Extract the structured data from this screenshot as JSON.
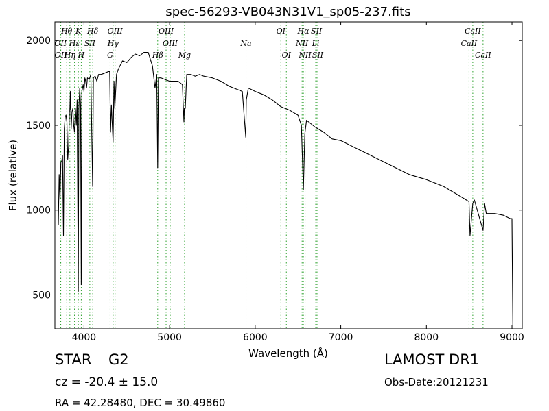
{
  "chart_data": {
    "type": "line",
    "title": "spec-56293-VB043N31V1_sp05-237.fits",
    "xlabel": "Wavelength (Å)",
    "ylabel": "Flux (relative)",
    "xlim": [
      3660,
      9120
    ],
    "ylim": [
      300,
      2110
    ],
    "x_ticks": [
      4000,
      5000,
      6000,
      7000,
      8000,
      9000
    ],
    "y_ticks": [
      500,
      1000,
      1500,
      2000
    ],
    "line_color": "#000000",
    "marker_line_color": "#2ca02c",
    "series": [
      {
        "x": [
          3700,
          3710,
          3720,
          3730,
          3740,
          3750,
          3760,
          3770,
          3780,
          3790,
          3800,
          3810,
          3820,
          3830,
          3835,
          3840,
          3850,
          3860,
          3870,
          3880,
          3889,
          3900,
          3910,
          3920,
          3933,
          3940,
          3950,
          3960,
          3968,
          3975,
          3990,
          4000,
          4010,
          4020,
          4030,
          4040,
          4060,
          4080,
          4101,
          4110,
          4130,
          4150,
          4170,
          4200,
          4250,
          4300,
          4310,
          4320,
          4340,
          4350,
          4360,
          4380,
          4400,
          4450,
          4500,
          4550,
          4600,
          4650,
          4700,
          4750,
          4800,
          4830,
          4850,
          4861,
          4870,
          4900,
          4950,
          5000,
          5050,
          5100,
          5150,
          5167,
          5172,
          5183,
          5200,
          5250,
          5300,
          5350,
          5400,
          5500,
          5600,
          5700,
          5800,
          5850,
          5890,
          5896,
          5920,
          6000,
          6100,
          6200,
          6300,
          6400,
          6500,
          6540,
          6563,
          6580,
          6600,
          6650,
          6700,
          6800,
          6900,
          7000,
          7200,
          7400,
          7600,
          7800,
          8000,
          8200,
          8400,
          8498,
          8510,
          8542,
          8560,
          8662,
          8680,
          8700,
          8800,
          8900,
          8980,
          9000,
          9010
        ],
        "y": [
          910,
          1210,
          1060,
          1280,
          1290,
          1320,
          850,
          1480,
          1550,
          1560,
          1520,
          1300,
          1380,
          1590,
          1590,
          1700,
          1480,
          1580,
          1600,
          1500,
          1460,
          1600,
          1500,
          1650,
          520,
          1600,
          1720,
          1620,
          560,
          1700,
          1740,
          1700,
          1780,
          1760,
          1720,
          1780,
          1770,
          1800,
          1140,
          1780,
          1790,
          1760,
          1800,
          1800,
          1810,
          1820,
          1460,
          1620,
          1400,
          1760,
          1600,
          1800,
          1830,
          1880,
          1870,
          1900,
          1920,
          1910,
          1930,
          1930,
          1850,
          1720,
          1800,
          1250,
          1780,
          1780,
          1770,
          1760,
          1760,
          1760,
          1740,
          1520,
          1600,
          1600,
          1800,
          1800,
          1790,
          1800,
          1790,
          1780,
          1760,
          1730,
          1710,
          1700,
          1430,
          1650,
          1720,
          1700,
          1680,
          1650,
          1610,
          1590,
          1560,
          1500,
          1120,
          1450,
          1530,
          1510,
          1490,
          1460,
          1420,
          1410,
          1360,
          1310,
          1260,
          1210,
          1180,
          1140,
          1080,
          1050,
          850,
          1040,
          1060,
          880,
          1040,
          980,
          980,
          970,
          950,
          950,
          320
        ]
      }
    ],
    "lines_top": [
      {
        "label": "Hθ",
        "x": 3798
      },
      {
        "label": "K",
        "x": 3934
      },
      {
        "label": "Hδ",
        "x": 4102
      },
      {
        "label": "OIII",
        "x": 4363
      },
      {
        "label": "OIII",
        "x": 4959
      },
      {
        "label": "OI",
        "x": 6300
      },
      {
        "label": "Hα",
        "x": 6563
      },
      {
        "label": "SII",
        "x": 6716
      },
      {
        "label": "CaII",
        "x": 8542
      }
    ],
    "lines_mid": [
      {
        "label": "OII",
        "x": 3726
      },
      {
        "label": "Hε",
        "x": 3889
      },
      {
        "label": "SII",
        "x": 4068
      },
      {
        "label": "Hγ",
        "x": 4340
      },
      {
        "label": "OIII",
        "x": 5007
      },
      {
        "label": "Na",
        "x": 5893
      },
      {
        "label": "NII",
        "x": 6548
      },
      {
        "label": "Li",
        "x": 6707
      },
      {
        "label": "CaII",
        "x": 8498
      }
    ],
    "lines_low": [
      {
        "label": "OII",
        "x": 3729
      },
      {
        "label": "Hη",
        "x": 3835
      },
      {
        "label": "H",
        "x": 3968
      },
      {
        "label": "G",
        "x": 4305
      },
      {
        "label": "Hβ",
        "x": 4861
      },
      {
        "label": "Mg",
        "x": 5175
      },
      {
        "label": "OI",
        "x": 6364
      },
      {
        "label": "NII",
        "x": 6583
      },
      {
        "label": "SII",
        "x": 6731
      },
      {
        "label": "CaII",
        "x": 8662
      }
    ]
  },
  "info": {
    "object_class": "STAR",
    "object_subclass": "G2",
    "survey": "LAMOST DR1",
    "redshift": "cz = -20.4 ± 15.0",
    "obs_date": "Obs-Date:20121231",
    "radec": "RA = 42.28480, DEC = 30.49860"
  }
}
